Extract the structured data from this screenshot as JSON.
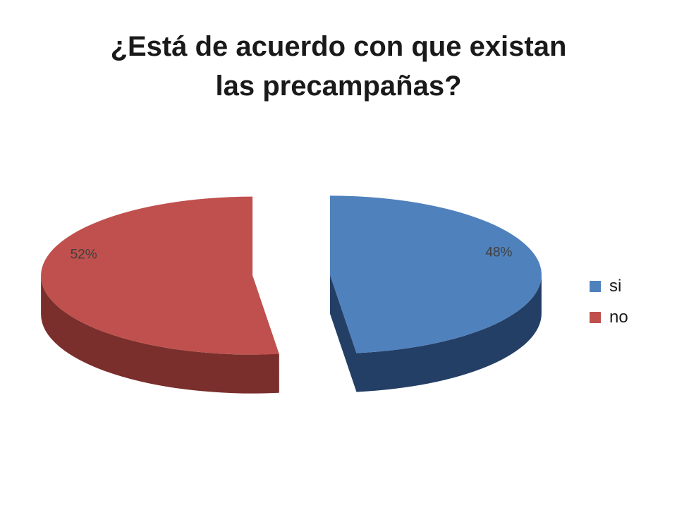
{
  "chart_data": {
    "type": "pie",
    "title_lines": [
      "¿Está de acuerdo con que existan",
      "las precampañas?"
    ],
    "categories": [
      "si",
      "no"
    ],
    "values": [
      48,
      52
    ],
    "data_labels": [
      "48%",
      "52%"
    ],
    "colors": [
      "#4f81bd",
      "#c0504d"
    ],
    "side_colors": [
      "#243f66",
      "#7a2f2d"
    ],
    "legend_position": "right",
    "exploded": true,
    "three_d": true
  }
}
